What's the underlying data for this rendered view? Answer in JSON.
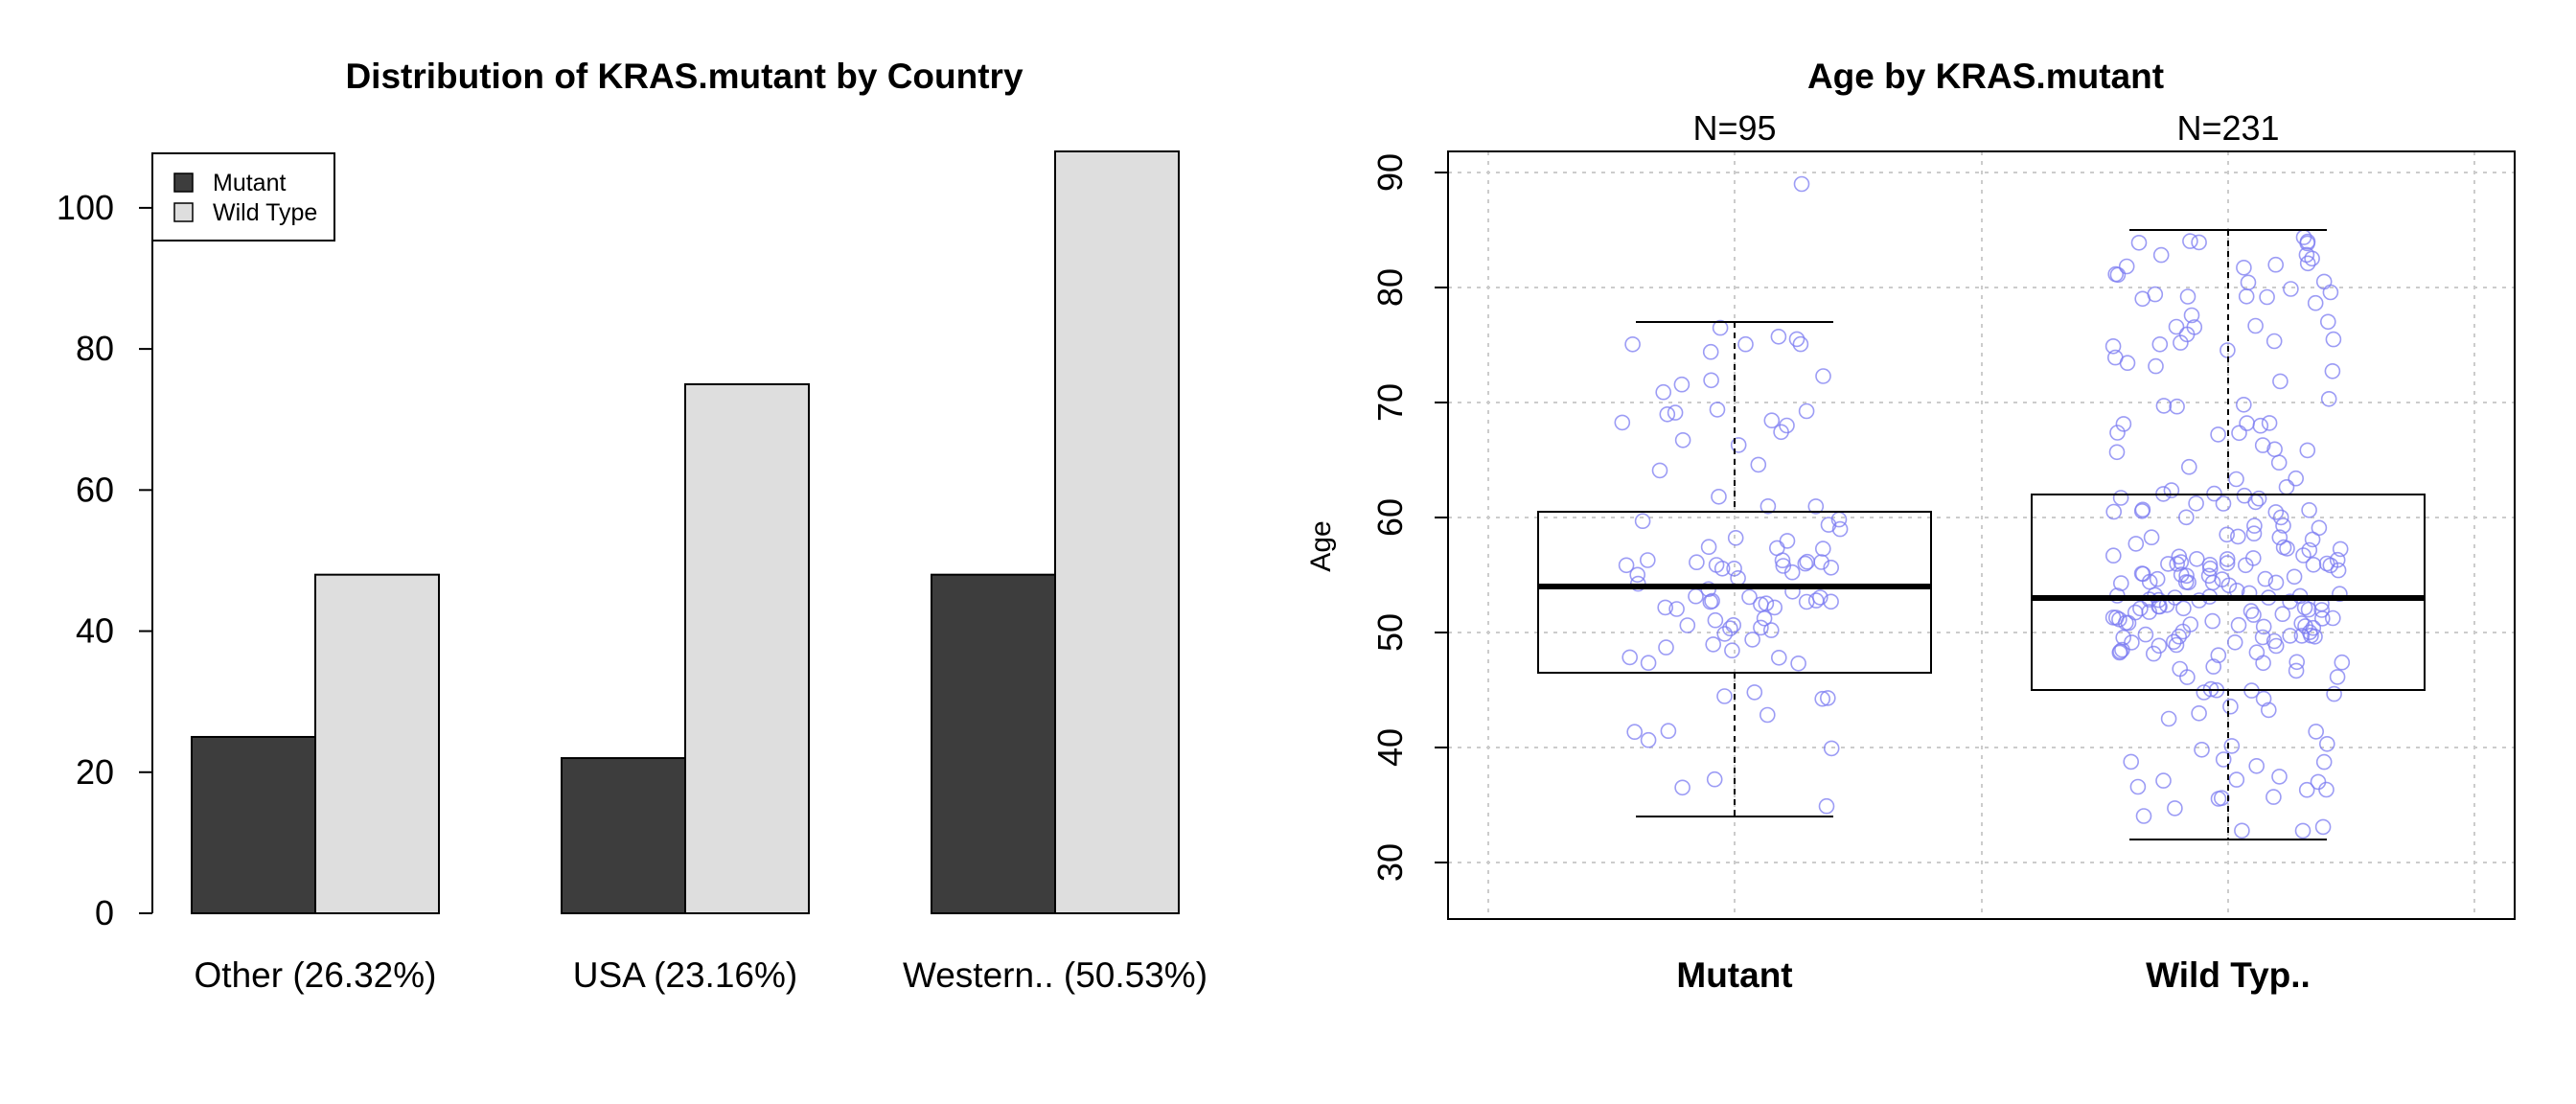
{
  "chart_data": [
    {
      "type": "bar",
      "title": "Distribution of KRAS.mutant by Country",
      "categories": [
        "Other (26.32%)",
        "USA (23.16%)",
        "Western.. (50.53%)"
      ],
      "series": [
        {
          "name": "Mutant",
          "values": [
            25,
            22,
            48
          ],
          "color": "#3d3d3d"
        },
        {
          "name": "Wild Type",
          "values": [
            48,
            75,
            108
          ],
          "color": "#dedede"
        }
      ],
      "ylim": [
        0,
        108
      ],
      "yticks": [
        "0",
        "20",
        "40",
        "60",
        "80",
        "100"
      ],
      "legend_position": "top-left",
      "xlabel": "",
      "ylabel": ""
    },
    {
      "type": "box",
      "title": "Age by KRAS.mutant",
      "ylabel": "Age",
      "ylim": [
        25,
        92
      ],
      "yticks": [
        "30",
        "40",
        "50",
        "60",
        "70",
        "80",
        "90"
      ],
      "grid": true,
      "point_color": "#7b7bf2",
      "groups": [
        {
          "label": "Mutant",
          "n_label": "N=95",
          "n": 95,
          "whisker_low": 34,
          "q1": 46.5,
          "median": 54,
          "q3": 60.5,
          "whisker_high": 77,
          "outliers": [
            89
          ]
        },
        {
          "label": "Wild Typ..",
          "n_label": "N=231",
          "n": 231,
          "whisker_low": 32,
          "q1": 45,
          "median": 53,
          "q3": 62,
          "whisker_high": 85,
          "outliers": []
        }
      ]
    }
  ]
}
